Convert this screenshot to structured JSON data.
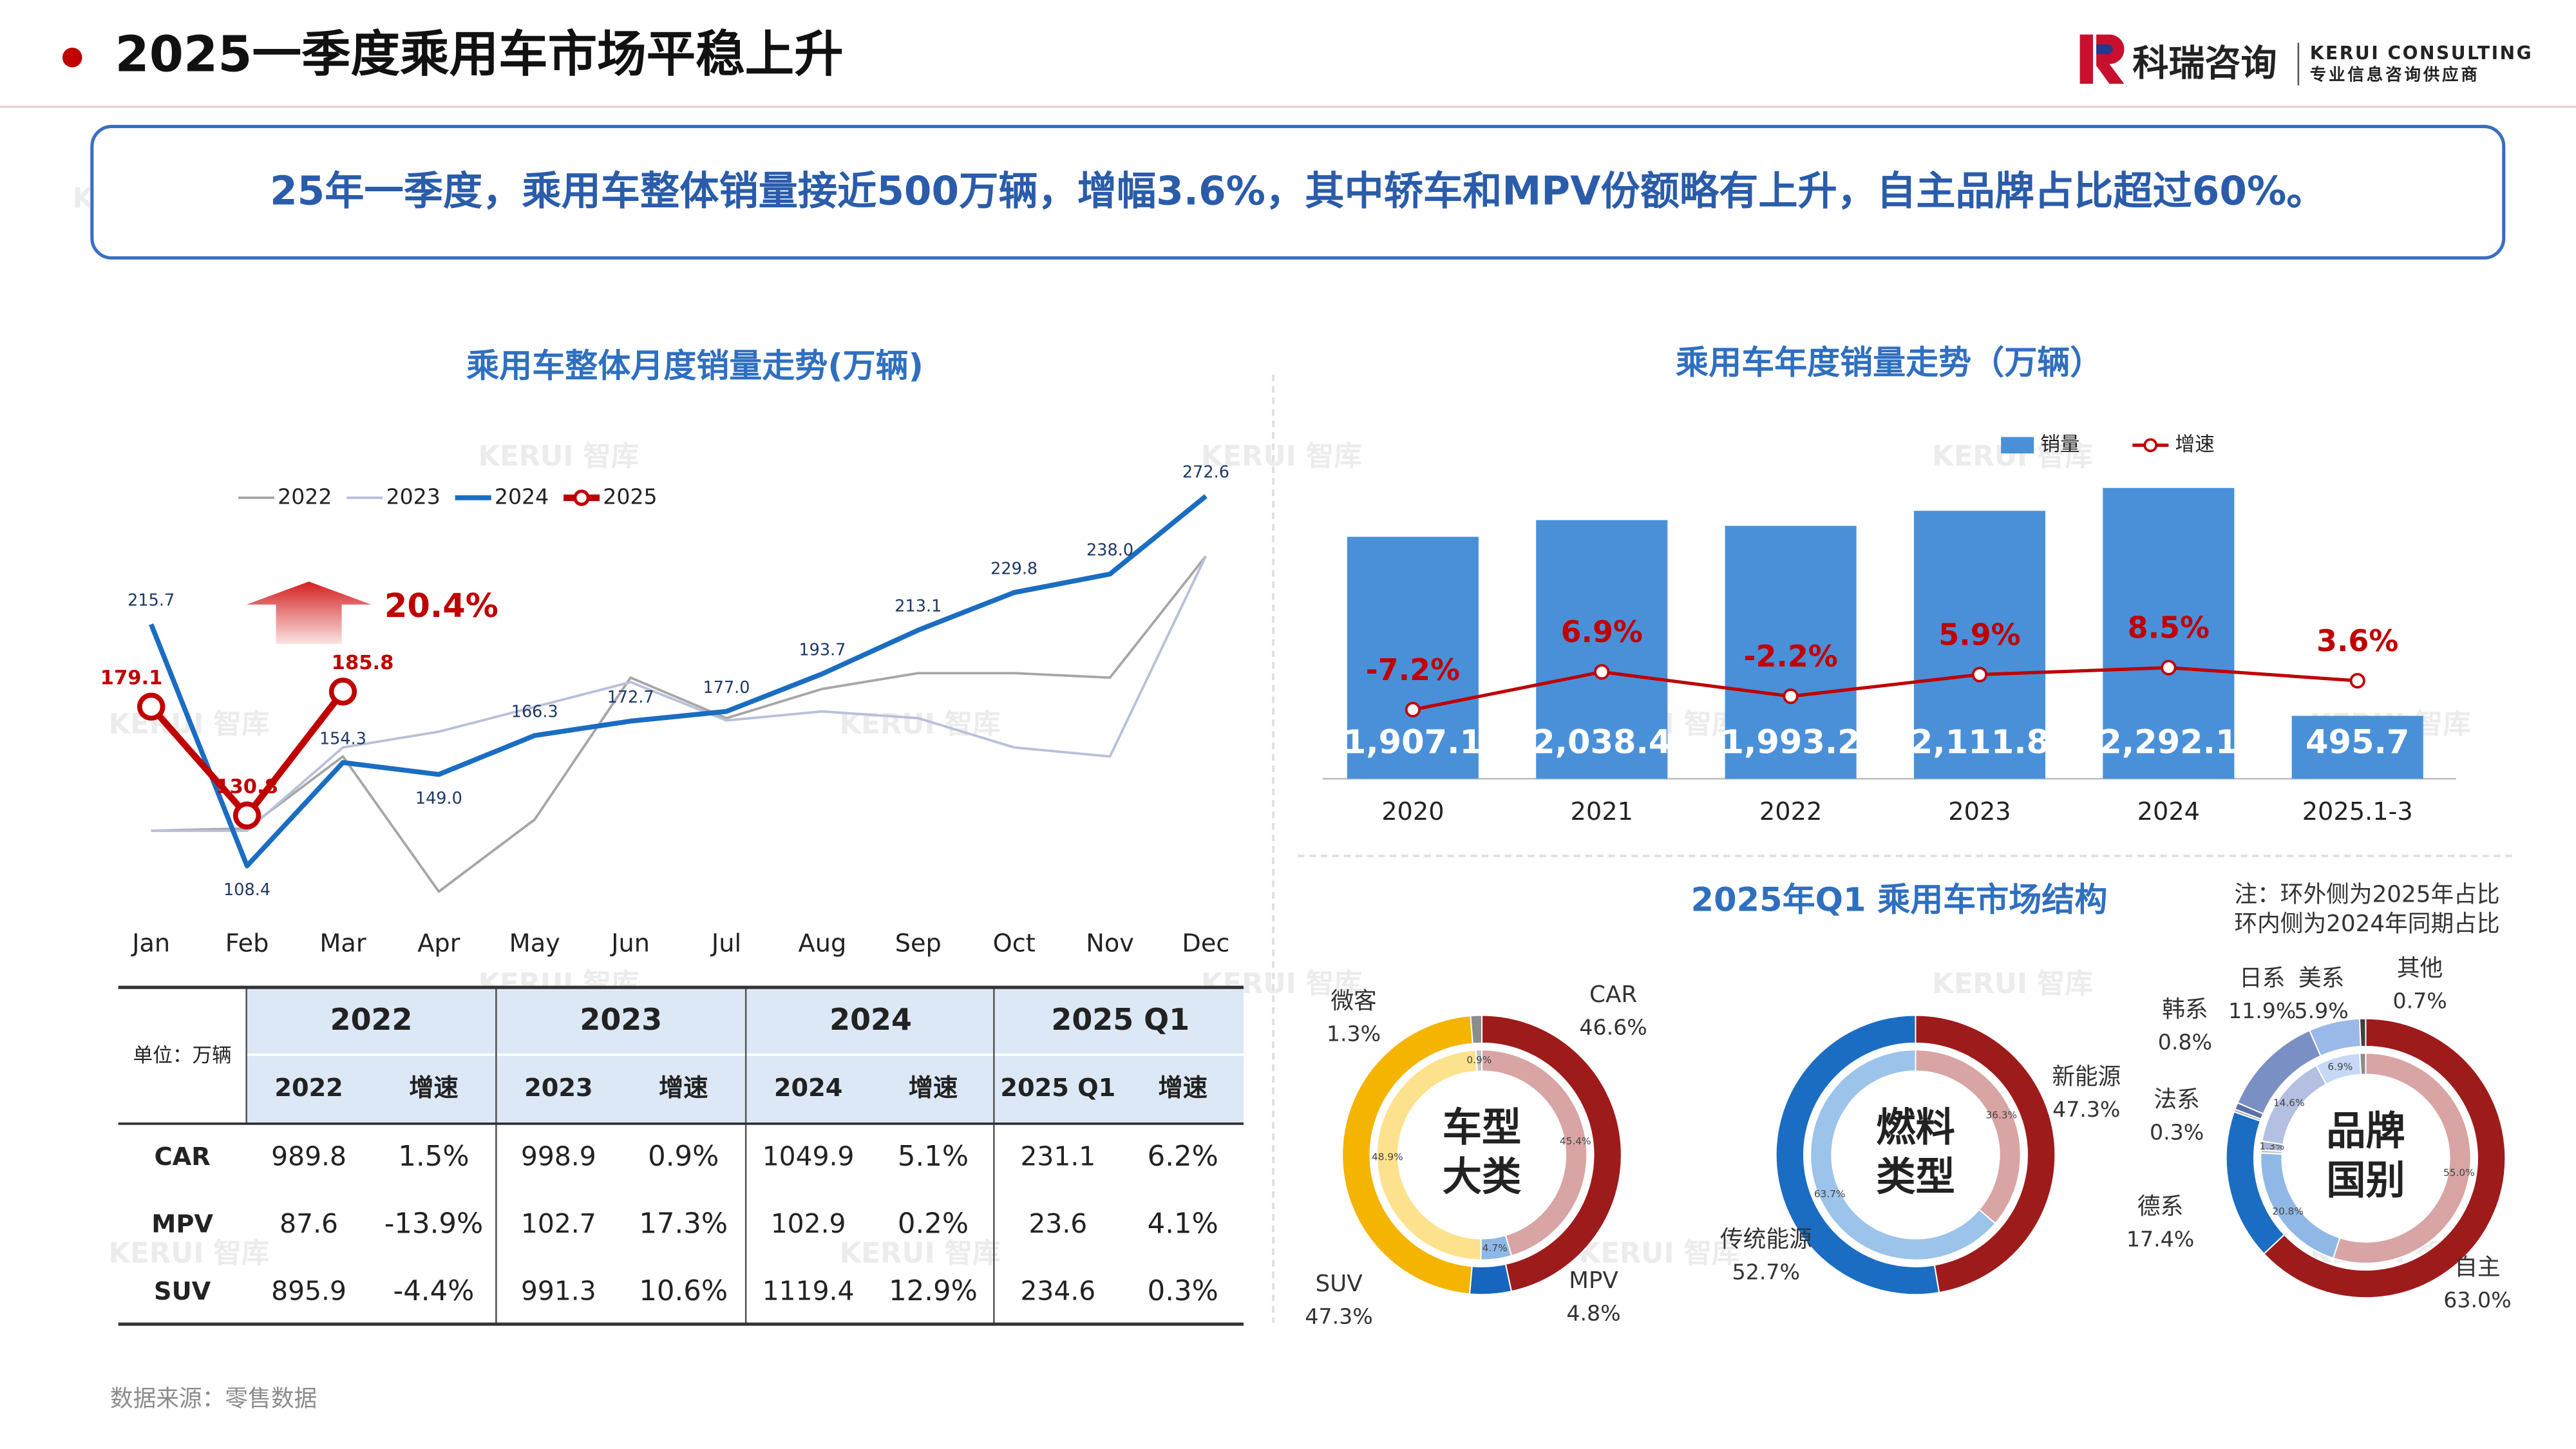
{
  "header": {
    "title": "2025一季度乘用车市场平稳上升",
    "logo_name": "科瑞咨询",
    "logo_en": "KERUI CONSULTING",
    "logo_sub": "专业信息咨询供应商"
  },
  "summary": "25年一季度，乘用车整体销量接近500万辆，增幅3.6%，其中轿车和MPV份额略有上升，自主品牌占比超过60%。",
  "watermark": "KERUI 智库",
  "chart_data": [
    {
      "type": "line",
      "title": "乘用车整体月度销量走势(万辆)",
      "categories": [
        "Jan",
        "Feb",
        "Mar",
        "Apr",
        "May",
        "Jun",
        "Jul",
        "Aug",
        "Sep",
        "Oct",
        "Nov",
        "Dec"
      ],
      "ylim": [
        80,
        285
      ],
      "annotation": "20.4%",
      "series": [
        {
          "name": "2022",
          "color": "#a6a6a6",
          "values": [
            124,
            125,
            157,
            97,
            129,
            192,
            174,
            187,
            194,
            194,
            192,
            246
          ]
        },
        {
          "name": "2023",
          "color": "#b8c0da",
          "values": [
            124,
            124,
            161,
            168,
            179,
            190,
            173,
            177,
            174,
            161,
            157,
            246
          ]
        },
        {
          "name": "2024",
          "color": "#1a6dc2",
          "values": [
            215.7,
            108.4,
            154.3,
            149,
            166.3,
            172.7,
            177,
            193.7,
            213.1,
            229.8,
            238,
            272.6
          ],
          "value_labels": [
            "215.7",
            "108.4",
            "154.3",
            "149.0",
            "166.3",
            "172.7",
            "177.0",
            "193.7",
            "213.1",
            "229.8",
            "238.0",
            "272.6"
          ]
        },
        {
          "name": "2025",
          "color": "#c00000",
          "values": [
            179.1,
            130.8,
            185.8,
            null,
            null,
            null,
            null,
            null,
            null,
            null,
            null,
            null
          ],
          "value_labels": [
            "179.1",
            "130.8",
            "185.8",
            null,
            null,
            null,
            null,
            null,
            null,
            null,
            null,
            null
          ]
        }
      ]
    },
    {
      "type": "combo",
      "title": "乘用车年度销量走势（万辆）",
      "categories": [
        "2020",
        "2021",
        "2022",
        "2023",
        "2024",
        "2025.1-3"
      ],
      "ylim": [
        0,
        2300
      ],
      "y2lim": [
        -33,
        76
      ],
      "series": [
        {
          "name": "销量",
          "type": "bar",
          "color": "#4a90d9",
          "values": [
            1907.1,
            2038.4,
            1993.2,
            2111.8,
            2292.1,
            495.7
          ],
          "value_labels": [
            "1,907.1",
            "2,038.4",
            "1,993.2",
            "2,111.8",
            "2,292.1",
            "495.7"
          ]
        },
        {
          "name": "增速",
          "type": "line",
          "axis": "y2",
          "color": "#c00000",
          "values": [
            -7.2,
            6.9,
            -2.2,
            5.9,
            8.5,
            3.6
          ],
          "value_labels": [
            "-7.2%",
            "6.9%",
            "-2.2%",
            "5.9%",
            "8.5%",
            "3.6%"
          ]
        }
      ]
    },
    {
      "type": "donut",
      "center_label": [
        "车型",
        "大类"
      ],
      "categories": [
        "CAR",
        "MPV",
        "SUV",
        "微客"
      ],
      "series": [
        {
          "values": [
            46.6,
            4.8,
            47.3,
            1.3
          ],
          "value_labels": [
            "46.6%",
            "4.8%",
            "47.3%",
            "1.3%"
          ],
          "colors": [
            "#9e1b1b",
            "#1666c0",
            "#f5b400",
            "#8c8c8c"
          ]
        },
        {
          "values": [
            45.4,
            4.7,
            48.9,
            0.9
          ],
          "value_labels": [
            "45.4%",
            "4.7%",
            "48.9%",
            "0.9%"
          ],
          "colors": [
            "#d8a4a4",
            "#8fb8e6",
            "#fde28e",
            "#c4c4c4"
          ]
        }
      ]
    },
    {
      "type": "donut",
      "center_label": [
        "燃料",
        "类型"
      ],
      "categories": [
        "新能源",
        "传统能源"
      ],
      "series": [
        {
          "values": [
            47.3,
            52.7
          ],
          "value_labels": [
            "47.3%",
            "52.7%"
          ],
          "colors": [
            "#9e1b1b",
            "#1a6dc2"
          ]
        },
        {
          "values": [
            36.3,
            63.7
          ],
          "value_labels": [
            "36.3%",
            "63.7%"
          ],
          "colors": [
            "#d8a4a4",
            "#9cc3ea"
          ]
        }
      ]
    },
    {
      "type": "donut",
      "center_label": [
        "品牌",
        "国别"
      ],
      "categories": [
        "自主",
        "德系",
        "法系",
        "韩系",
        "日系",
        "美系",
        "其他"
      ],
      "series": [
        {
          "values": [
            63.0,
            17.4,
            0.3,
            0.8,
            11.9,
            5.9,
            0.7
          ],
          "value_labels": [
            "63.0%",
            "17.4%",
            "0.3%",
            "0.8%",
            "11.9%",
            "5.9%",
            "0.7%"
          ],
          "colors": [
            "#9e1b1b",
            "#1a6dc2",
            "#a6a6a6",
            "#5b6fa8",
            "#7a8fc4",
            "#9ab8e8",
            "#404040"
          ]
        },
        {
          "values": [
            55.0,
            20.8,
            0.5,
            1.3,
            14.6,
            6.9,
            0.9
          ],
          "value_labels": [
            "55.0%",
            "20.8%",
            null,
            "1.3%",
            "14.6%",
            "6.9%",
            null
          ],
          "colors": [
            "#d8a4a4",
            "#8fb8e6",
            "#c4c4c4",
            "#a9b4d6",
            "#b3c0e2",
            "#c6d8f3",
            "#8c8c8c"
          ]
        }
      ]
    }
  ],
  "structure": {
    "title": "2025年Q1 乘用车市场结构",
    "note": [
      "注：环外侧为2025年占比",
      "环内侧为2024年同期占比"
    ]
  },
  "table": {
    "unit": "单位：万辆",
    "groups": [
      "2022",
      "2023",
      "2024",
      "2025 Q1"
    ],
    "subheaders": [
      "2022",
      "增速",
      "2023",
      "增速",
      "2024",
      "增速",
      "2025 Q1",
      "增速"
    ],
    "rows": [
      [
        "CAR",
        "989.8",
        "1.5%",
        "998.9",
        "0.9%",
        "1049.9",
        "5.1%",
        "231.1",
        "6.2%"
      ],
      [
        "MPV",
        "87.6",
        "-13.9%",
        "102.7",
        "17.3%",
        "102.9",
        "0.2%",
        "23.6",
        "4.1%"
      ],
      [
        "SUV",
        "895.9",
        "-4.4%",
        "991.3",
        "10.6%",
        "1119.4",
        "12.9%",
        "234.6",
        "0.3%"
      ]
    ]
  },
  "source": "数据来源：零售数据"
}
